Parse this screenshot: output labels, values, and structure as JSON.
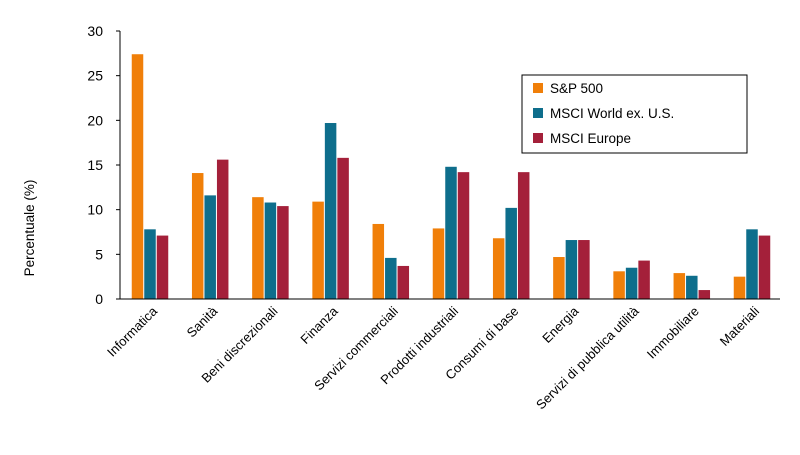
{
  "chart_data": {
    "type": "bar",
    "title": "",
    "xlabel": "",
    "ylabel": "Percentuale (%)",
    "ylim": [
      0,
      30
    ],
    "yticks": [
      0,
      5,
      10,
      15,
      20,
      25,
      30
    ],
    "grid": false,
    "legend_position": "top-right",
    "categories": [
      "Informatica",
      "Sanità",
      "Beni discrezionali",
      "Finanza",
      "Servizi commerciali",
      "Prodotti industriali",
      "Consumi di base",
      "Energia",
      "Servizi di pubblica utilità",
      "Immobiliare",
      "Materiali"
    ],
    "series": [
      {
        "name": "S&P 500",
        "color": "#F07F09",
        "values": [
          27.4,
          14.1,
          11.4,
          10.9,
          8.4,
          7.9,
          6.8,
          4.7,
          3.1,
          2.9,
          2.5
        ]
      },
      {
        "name": "MSCI World ex. U.S.",
        "color": "#0E6E8C",
        "values": [
          7.8,
          11.6,
          10.8,
          19.7,
          4.6,
          14.8,
          10.2,
          6.6,
          3.5,
          2.6,
          7.8
        ]
      },
      {
        "name": "MSCI Europe",
        "color": "#A4203A",
        "values": [
          7.1,
          15.6,
          10.4,
          15.8,
          3.7,
          14.2,
          14.2,
          6.6,
          4.3,
          1.0,
          7.1
        ]
      }
    ]
  }
}
